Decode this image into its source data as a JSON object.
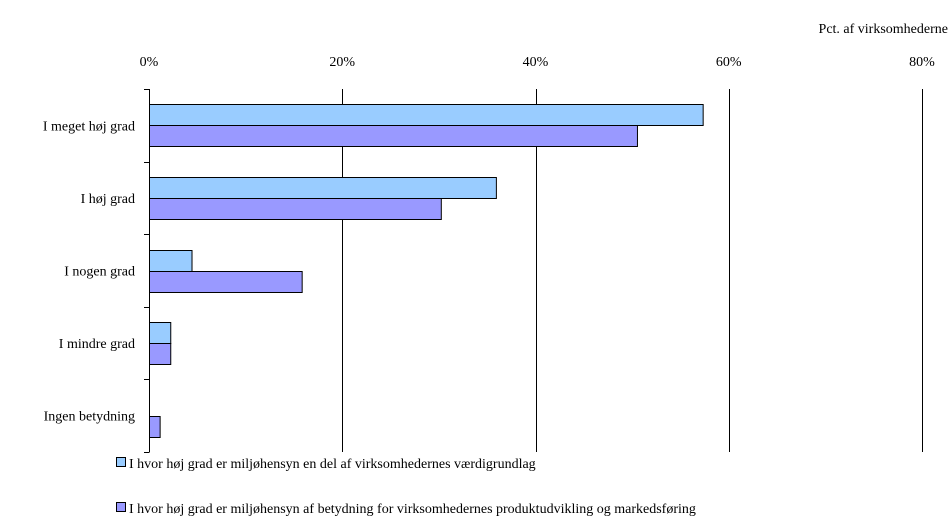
{
  "chart_data": {
    "type": "bar",
    "orientation": "horizontal",
    "title": "",
    "unit_label": "Pct. af virksomhederne",
    "xlim": [
      0,
      80
    ],
    "x_ticks": [
      "0%",
      "20%",
      "40%",
      "60%",
      "80%"
    ],
    "x_tick_values": [
      0,
      20,
      40,
      60,
      80
    ],
    "grid": true,
    "legend_position": "bottom",
    "categories": [
      "I meget høj grad",
      "I høj grad",
      "I nogen grad",
      "I mindre grad",
      "Ingen betydning"
    ],
    "series": [
      {
        "name": "I hvor høj grad er miljøhensyn en del af virksomhedernes værdigrundlag",
        "color": "#99ccff",
        "values": [
          57.3,
          35.9,
          4.4,
          2.2,
          0
        ]
      },
      {
        "name": "I hvor høj grad er miljøhensyn af betydning for virksomhedernes produktudvikling og markedsføring",
        "color": "#9999ff",
        "values": [
          50.5,
          30.2,
          15.8,
          2.2,
          1.1
        ]
      }
    ]
  }
}
